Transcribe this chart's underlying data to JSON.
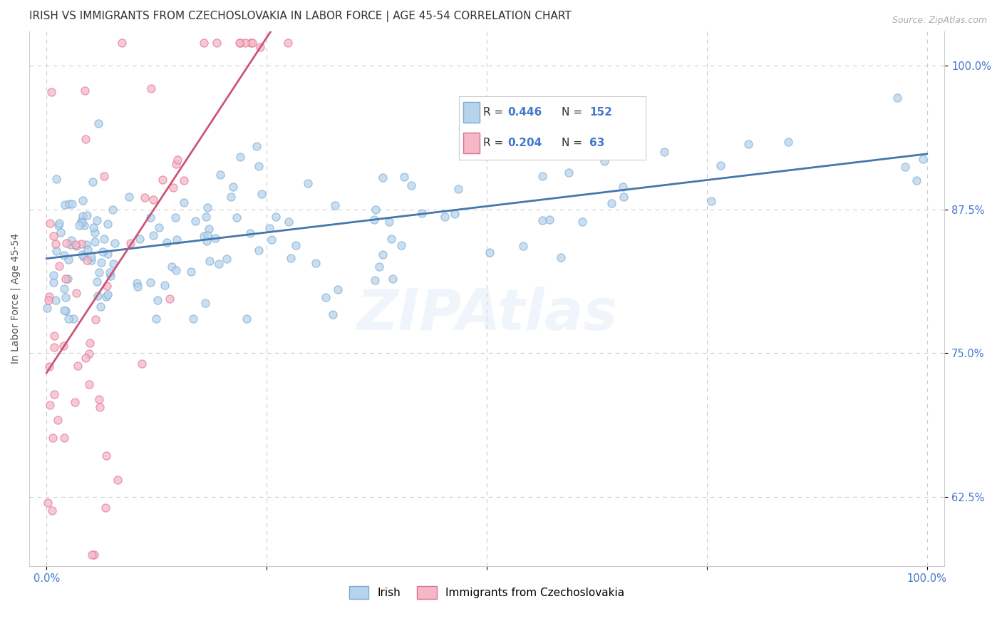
{
  "title": "IRISH VS IMMIGRANTS FROM CZECHOSLOVAKIA IN LABOR FORCE | AGE 45-54 CORRELATION CHART",
  "source": "Source: ZipAtlas.com",
  "ylabel": "In Labor Force | Age 45-54",
  "ytick_labels": [
    "62.5%",
    "75.0%",
    "87.5%",
    "100.0%"
  ],
  "ytick_values": [
    0.625,
    0.75,
    0.875,
    1.0
  ],
  "xlim": [
    -0.02,
    1.02
  ],
  "ylim": [
    0.565,
    1.03
  ],
  "irish_R": 0.446,
  "irish_N": 152,
  "czech_R": 0.204,
  "czech_N": 63,
  "irish_color": "#b8d4ed",
  "irish_edge_color": "#7aaad0",
  "czech_color": "#f5b8c8",
  "czech_edge_color": "#e07090",
  "irish_line_color": "#4477aa",
  "czech_line_color": "#cc5577",
  "legend_label_irish": "Irish",
  "legend_label_czech": "Immigrants from Czechoslovakia",
  "watermark": "ZIPAtlas",
  "background_color": "#ffffff",
  "grid_color": "#cccccc",
  "title_fontsize": 11,
  "axis_label_fontsize": 10,
  "tick_fontsize": 10.5,
  "tick_color": "#4477cc"
}
